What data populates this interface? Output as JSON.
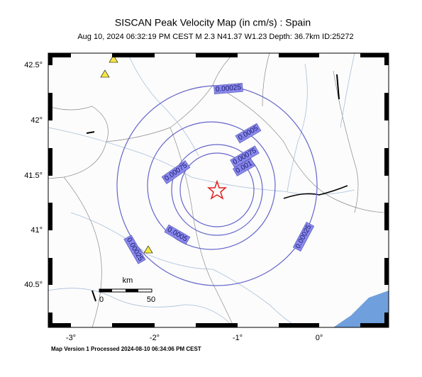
{
  "title": "SISCAN Peak Velocity Map (in cm/s) : Spain",
  "subtitle": "Aug 10, 2024 06:32:19 PM CEST   M 2.3   N41.37 W1.23   Depth: 36.7km   ID:25272",
  "footer": "Map Version 1 Processed 2024-08-10 06:34:06 PM CEST",
  "map": {
    "lat_labels": [
      "42.5°",
      "42°",
      "41.5°",
      "41°",
      "40.5°"
    ],
    "lon_labels": [
      "-3°",
      "-2°",
      "-1°",
      "0°"
    ],
    "contour_labels": [
      "0.00025",
      "0.0005",
      "0.00075",
      "0.001",
      "0.00075",
      "0.0005",
      "0.00025",
      "0.00025"
    ],
    "scale_bar": {
      "unit": "km",
      "labels": [
        "0",
        "50"
      ]
    }
  }
}
